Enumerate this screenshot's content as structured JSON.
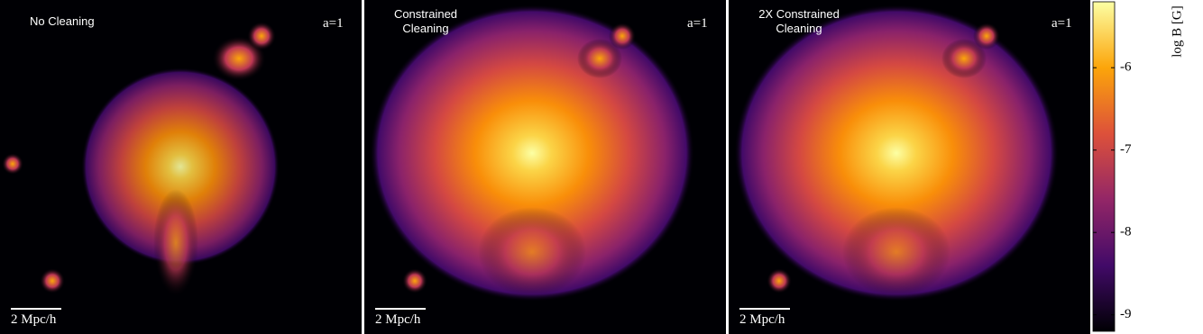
{
  "panels": [
    {
      "title": [
        "No Cleaning"
      ],
      "epoch": "a=1",
      "scalebar": "2 Mpc/h"
    },
    {
      "title": [
        "Constrained",
        "Cleaning"
      ],
      "epoch": "a=1",
      "scalebar": "2 Mpc/h"
    },
    {
      "title": [
        "2X Constrained",
        "Cleaning"
      ],
      "epoch": "a=1",
      "scalebar": "2 Mpc/h"
    }
  ],
  "colorbar": {
    "label": "log B [G]",
    "lim": [
      -9.2,
      -5.2
    ],
    "ticks": [
      -9,
      -8,
      -7,
      -6
    ]
  }
}
